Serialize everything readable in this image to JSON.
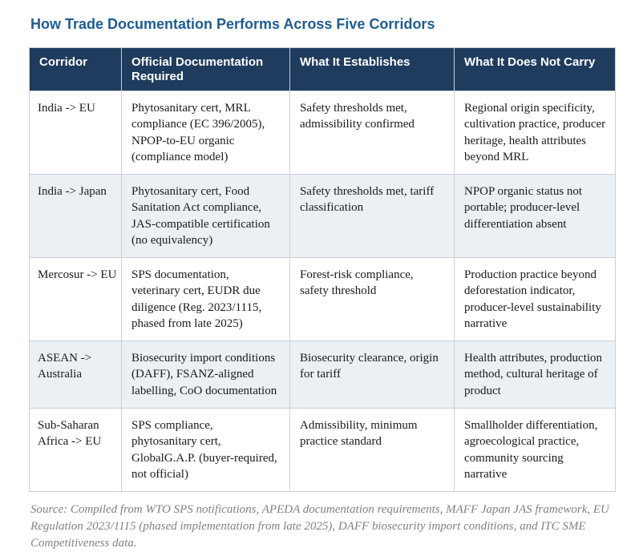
{
  "page": {
    "title": "How Trade Documentation Performs Across Five Corridors",
    "source_note": "Source: Compiled from WTO SPS notifications, APEDA documentation requirements, MAFF Japan JAS framework, EU Regulation 2023/1115 (phased implementation from late 2025), DAFF biosecurity import conditions, and ITC SME Competitiveness data."
  },
  "table": {
    "columns": [
      "Corridor",
      "Official Documentation Required",
      "What It Establishes",
      "What It Does Not Carry"
    ],
    "rows": [
      {
        "corridor": "India -> EU",
        "documentation": "Phytosanitary cert, MRL compliance (EC 396/2005), NPOP-to-EU organic (compliance model)",
        "establishes": "Safety thresholds met, admissibility confirmed",
        "not_carry": "Regional origin specificity, cultivation practice, producer heritage, health attributes beyond MRL"
      },
      {
        "corridor": "India -> Japan",
        "documentation": "Phytosanitary cert, Food Sanitation Act compliance, JAS-compatible certification (no equivalency)",
        "establishes": "Safety thresholds met, tariff classification",
        "not_carry": "NPOP organic status not portable; producer-level differentiation absent"
      },
      {
        "corridor": "Mercosur -> EU",
        "documentation": "SPS documentation, veterinary cert, EUDR due diligence (Reg. 2023/1115, phased from late 2025)",
        "establishes": "Forest-risk compliance, safety threshold",
        "not_carry": "Production practice beyond deforestation indicator, producer-level sustainability narrative"
      },
      {
        "corridor": "ASEAN -> Australia",
        "documentation": "Biosecurity import conditions (DAFF), FSANZ-aligned labelling, CoO documentation",
        "establishes": "Biosecurity clearance, origin for tariff",
        "not_carry": "Health attributes, production method, cultural heritage of product"
      },
      {
        "corridor": "Sub-Saharan Africa -> EU",
        "documentation": "SPS compliance, phytosanitary cert, GlobalG.A.P. (buyer-required, not official)",
        "establishes": "Admissibility, minimum practice standard",
        "not_carry": "Smallholder differentiation, agroecological practice, community sourcing narrative"
      }
    ]
  },
  "colors": {
    "header_bg": "#1f3c5e",
    "header_text": "#ffffff",
    "title_text": "#1f5c8f",
    "stripe_bg": "#eaf0f4",
    "border": "#c9ced4",
    "body_text": "#1a1a1a",
    "source_text": "#7d8288"
  }
}
